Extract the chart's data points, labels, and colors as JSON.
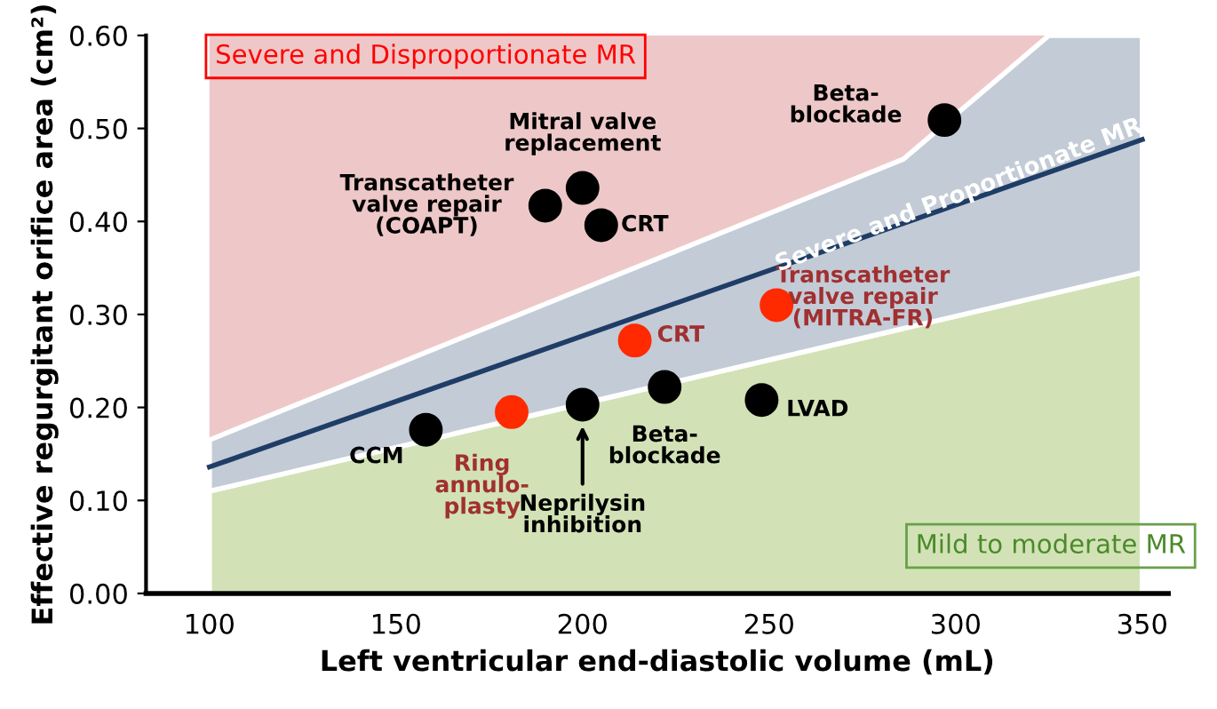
{
  "chart_data": {
    "type": "scatter",
    "xlabel": "Left ventricular end-diastolic volume (mL)",
    "ylabel": "Effective regurgitant orifice area (cm²)",
    "xlim": [
      83,
      357
    ],
    "ylim": [
      0,
      0.6
    ],
    "xticks": [
      100,
      150,
      200,
      250,
      300,
      350
    ],
    "yticks": [
      {
        "value": 0,
        "label": "0.00"
      },
      {
        "value": 0.1,
        "label": "0.10"
      },
      {
        "value": 0.2,
        "label": "0.20"
      },
      {
        "value": 0.3,
        "label": "0.30"
      },
      {
        "value": 0.4,
        "label": "0.40"
      },
      {
        "value": 0.5,
        "label": "0.50"
      },
      {
        "value": 0.6,
        "label": "0.60"
      }
    ],
    "grid": false,
    "legend": false,
    "marker": "circle",
    "bands": [
      {
        "axis": "x",
        "from": 100,
        "to": 350,
        "label": "Severe and Disproportionate MR",
        "color": "#eec8c8"
      }
    ],
    "series": [
      {
        "type": "area",
        "color": "#d2e2b6",
        "marker": "none",
        "x": [
          100,
          350
        ],
        "values": [
          0.11,
          0.345
        ]
      },
      {
        "type": "line",
        "color": "#1f3d66",
        "marker": "none",
        "x": [
          100,
          286,
          325,
          350
        ],
        "values": [
          0.136,
          0.398,
          0.453,
          0.488
        ],
        "lower": [
          0.11,
          0.285,
          0.3215,
          0.345
        ],
        "upper": [
          0.165,
          0.467,
          0.6,
          0.6
        ],
        "line_style": "solid"
      },
      {
        "color": "#000000",
        "x": [
          190,
          200,
          205,
          297,
          158,
          200,
          222,
          248
        ],
        "values": [
          0.417,
          0.436,
          0.396,
          0.509,
          0.176,
          0.203,
          0.222,
          0.208
        ]
      },
      {
        "color": "#ff2a00",
        "x": [
          181,
          214,
          252
        ],
        "values": [
          0.195,
          0.272,
          0.31
        ]
      }
    ],
    "annotations": [
      {
        "text": "Transcatheter\nvalve repair\n(COAPT)",
        "x": 190,
        "y": 0.417
      },
      {
        "text": "Mitral valve\nreplacement",
        "x": 200,
        "y": 0.436
      },
      {
        "text": "CRT",
        "x": 205,
        "y": 0.396
      },
      {
        "text": "Beta-\nblockade",
        "x": 297,
        "y": 0.509
      },
      {
        "text": "CCM",
        "x": 158,
        "y": 0.176
      },
      "Neprilysin\ninhibition",
      {
        "text": "Beta-\nblockade",
        "x": 222,
        "y": 0.222
      },
      {
        "text": "LVAD",
        "x": 248,
        "y": 0.208
      },
      {
        "text": "Ring\nannulo-\nplasty",
        "x": 181,
        "y": 0.195
      },
      {
        "text": "CRT",
        "x": 214,
        "y": 0.272
      },
      {
        "text": "Transcatheter\nvalve repair\n(MITRA-FR)",
        "x": 252,
        "y": 0.31
      },
      "Severe and Proportionate MR",
      "Mild to moderate MR"
    ]
  }
}
